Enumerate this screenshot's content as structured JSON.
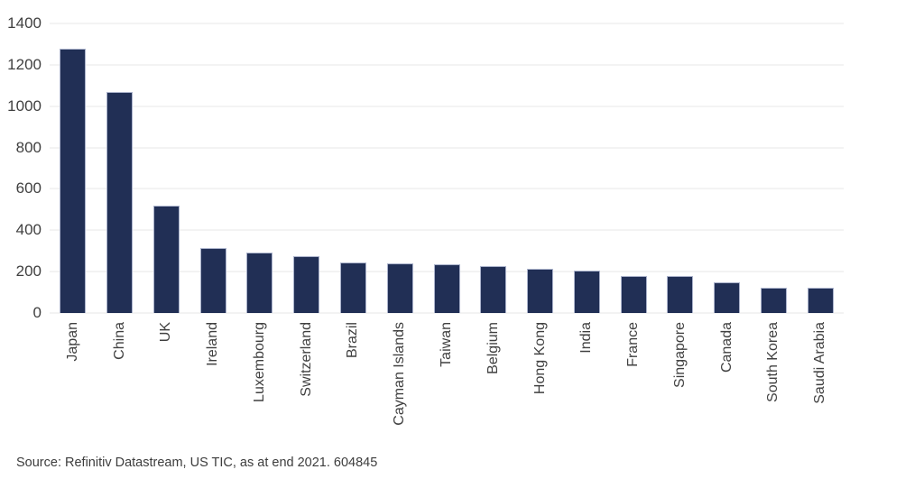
{
  "chart_data": {
    "type": "bar",
    "title": "",
    "xlabel": "",
    "ylabel": "",
    "categories": [
      "Japan",
      "China",
      "UK",
      "Ireland",
      "Luxembourg",
      "Switzerland",
      "Brazil",
      "Cayman Islands",
      "Taiwan",
      "Belgium",
      "Hong Kong",
      "India",
      "France",
      "Singapore",
      "Canada",
      "South Korea",
      "Saudi Arabia"
    ],
    "values": [
      1280,
      1068,
      520,
      312,
      293,
      273,
      246,
      241,
      234,
      227,
      215,
      204,
      178,
      178,
      150,
      121,
      122
    ],
    "ylim": [
      0,
      1400
    ],
    "yticks": [
      0,
      200,
      400,
      600,
      800,
      1000,
      1200,
      1400
    ],
    "grid": "horizontal",
    "legend": "none",
    "colors": {
      "bar_fill": "#212f55",
      "bar_border": "#aab2cb",
      "gridline": "#f3f3f3",
      "axis_text": "#404040"
    }
  },
  "source_note": "Source: Refinitiv Datastream, US TIC, as at end 2021. 604845"
}
